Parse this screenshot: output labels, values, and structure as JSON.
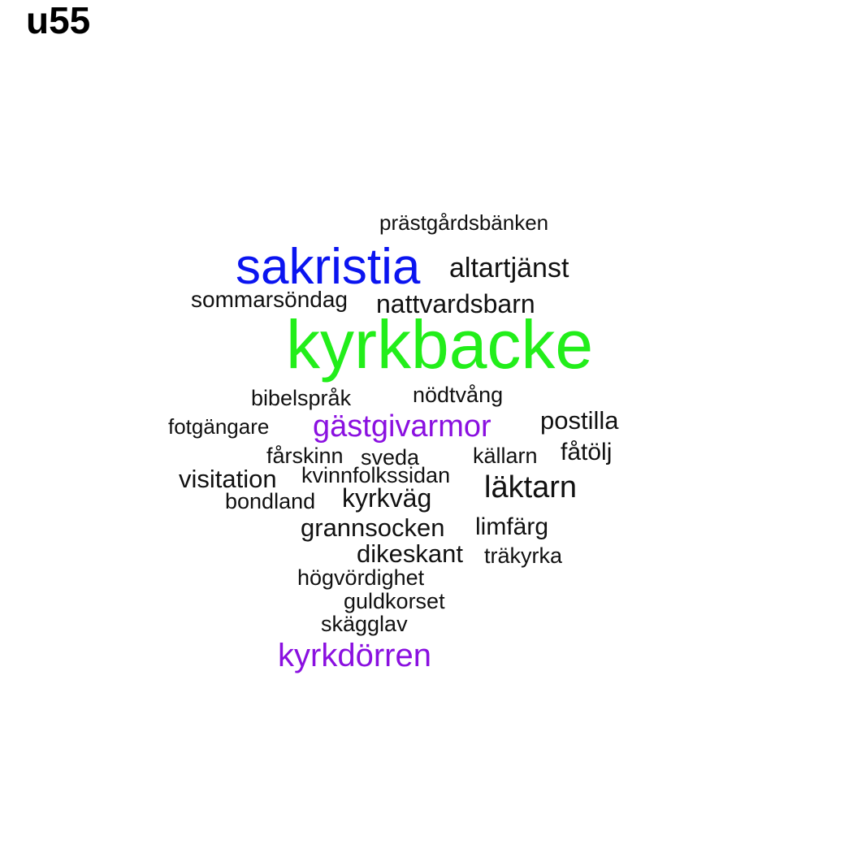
{
  "title": "u55",
  "colors": {
    "green": "#22ee1a",
    "blue": "#0a14f0",
    "purple": "#8a10e0",
    "black": "#111111"
  },
  "words": [
    {
      "text": "kyrkbacke",
      "color": "green"
    },
    {
      "text": "sakristia",
      "color": "blue"
    },
    {
      "text": "gästgivarmor",
      "color": "purple"
    },
    {
      "text": "kyrkdörren",
      "color": "purple"
    },
    {
      "text": "prästgårdsbänken",
      "color": "black"
    },
    {
      "text": "altartjänst",
      "color": "black"
    },
    {
      "text": "sommarsöndag",
      "color": "black"
    },
    {
      "text": "nattvardsbarn",
      "color": "black"
    },
    {
      "text": "bibelspråk",
      "color": "black"
    },
    {
      "text": "nödtvång",
      "color": "black"
    },
    {
      "text": "fotgängare",
      "color": "black"
    },
    {
      "text": "postilla",
      "color": "black"
    },
    {
      "text": "fårskinn",
      "color": "black"
    },
    {
      "text": "sveda",
      "color": "black"
    },
    {
      "text": "källarn",
      "color": "black"
    },
    {
      "text": "fåtölj",
      "color": "black"
    },
    {
      "text": "visitation",
      "color": "black"
    },
    {
      "text": "kvinnfolkssidan",
      "color": "black"
    },
    {
      "text": "läktarn",
      "color": "black"
    },
    {
      "text": "bondland",
      "color": "black"
    },
    {
      "text": "kyrkväg",
      "color": "black"
    },
    {
      "text": "grannsocken",
      "color": "black"
    },
    {
      "text": "limfärg",
      "color": "black"
    },
    {
      "text": "dikeskant",
      "color": "black"
    },
    {
      "text": "träkyrka",
      "color": "black"
    },
    {
      "text": "högvördighet",
      "color": "black"
    },
    {
      "text": "guldkorset",
      "color": "black"
    },
    {
      "text": "skägglav",
      "color": "black"
    }
  ]
}
